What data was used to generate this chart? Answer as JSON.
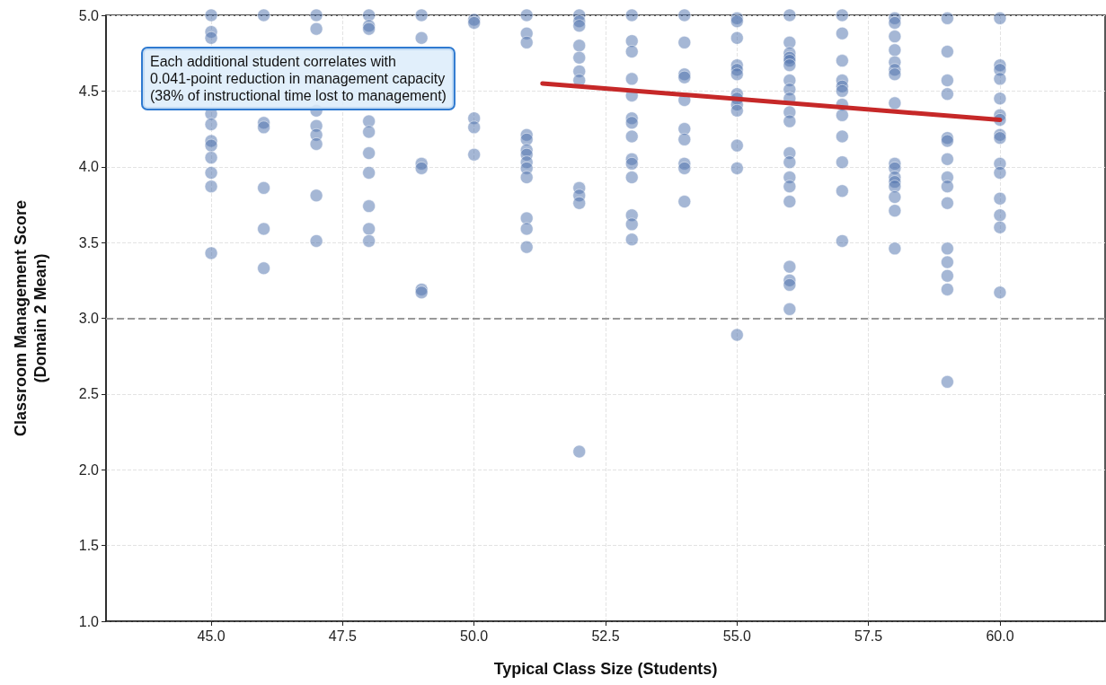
{
  "chart_data": {
    "type": "scatter",
    "xlabel": "Typical Class Size (Students)",
    "ylabel": "Classroom Management Score\n(Domain 2 Mean)",
    "annotations": [
      "Each additional student correlates with\n0.041-point reduction in management capacity\n(38% of instructional time lost to management)"
    ],
    "xlim": [
      43,
      62
    ],
    "ylim": [
      1,
      5
    ],
    "xticks": [
      {
        "value": 45,
        "label": "45.0"
      },
      {
        "value": 47.5,
        "label": "47.5"
      },
      {
        "value": 50,
        "label": "50.0"
      },
      {
        "value": 52.5,
        "label": "52.5"
      },
      {
        "value": 55,
        "label": "55.0"
      },
      {
        "value": 57.5,
        "label": "57.5"
      },
      {
        "value": 60,
        "label": "60.0"
      }
    ],
    "yticks": [
      {
        "value": 1,
        "label": "1.0"
      },
      {
        "value": 1.5,
        "label": "1.5"
      },
      {
        "value": 2,
        "label": "2.0"
      },
      {
        "value": 2.5,
        "label": "2.5"
      },
      {
        "value": 3,
        "label": "3.0"
      },
      {
        "value": 3.5,
        "label": "3.5"
      },
      {
        "value": 4,
        "label": "4.0"
      },
      {
        "value": 4.5,
        "label": "4.5"
      },
      {
        "value": 5,
        "label": "5.0"
      }
    ],
    "grid": true,
    "marker": "circle",
    "ref_lines": [
      {
        "axis": "y",
        "value": 3,
        "color": "#999999",
        "line_style": "dashed"
      }
    ],
    "series": [
      {
        "color": "#4c6fab",
        "x": [
          45,
          45,
          45,
          45,
          45,
          45,
          45,
          45,
          45,
          45,
          45,
          46,
          46,
          46,
          46,
          46,
          46,
          47,
          47,
          47,
          47,
          47,
          47,
          47,
          47,
          48,
          48,
          48,
          48,
          48,
          48,
          48,
          48,
          48,
          48,
          49,
          49,
          49,
          49,
          49,
          49,
          50,
          50,
          50,
          50,
          50,
          51,
          51,
          51,
          51,
          51,
          51,
          51,
          51,
          51,
          51,
          51,
          51,
          51,
          52,
          52,
          52,
          52,
          52,
          52,
          52,
          52,
          52,
          52,
          52,
          53,
          53,
          53,
          53,
          53,
          53,
          53,
          53,
          53,
          53,
          53,
          53,
          53,
          53,
          54,
          54,
          54,
          54,
          54,
          54,
          54,
          54,
          54,
          54,
          55,
          55,
          55,
          55,
          55,
          55,
          55,
          55,
          55,
          55,
          55,
          55,
          55,
          56,
          56,
          56,
          56,
          56,
          56,
          56,
          56,
          56,
          56,
          56,
          56,
          56,
          56,
          56,
          56,
          56,
          56,
          56,
          56,
          57,
          57,
          57,
          57,
          57,
          57,
          57,
          57,
          57,
          57,
          57,
          57,
          58,
          58,
          58,
          58,
          58,
          58,
          58,
          58,
          58,
          58,
          58,
          58,
          58,
          58,
          58,
          58,
          59,
          59,
          59,
          59,
          59,
          59,
          59,
          59,
          59,
          59,
          59,
          59,
          59,
          59,
          59,
          60,
          60,
          60,
          60,
          60,
          60,
          60,
          60,
          60,
          60,
          60,
          60,
          60,
          60,
          60
        ],
        "values": [
          5.0,
          4.89,
          4.85,
          4.35,
          4.28,
          4.17,
          4.14,
          4.06,
          3.96,
          3.87,
          3.43,
          5.0,
          4.29,
          4.26,
          3.86,
          3.59,
          3.33,
          5.0,
          4.91,
          4.37,
          4.27,
          4.21,
          4.15,
          3.81,
          3.51,
          5.0,
          4.93,
          4.91,
          4.3,
          4.23,
          4.09,
          3.96,
          3.74,
          3.59,
          3.51,
          5.0,
          4.85,
          4.02,
          3.99,
          3.19,
          3.17,
          4.97,
          4.95,
          4.32,
          4.26,
          4.08,
          5.0,
          4.88,
          4.82,
          4.21,
          4.18,
          4.11,
          4.08,
          4.03,
          3.99,
          3.93,
          3.66,
          3.59,
          3.47,
          5.0,
          4.96,
          4.93,
          4.8,
          4.72,
          4.63,
          4.57,
          3.86,
          3.81,
          3.76,
          2.12,
          5.0,
          4.83,
          4.76,
          4.58,
          4.47,
          4.32,
          4.29,
          4.2,
          4.05,
          4.02,
          3.93,
          3.68,
          3.62,
          3.52,
          5.0,
          4.82,
          4.61,
          4.59,
          4.44,
          4.25,
          4.18,
          4.02,
          3.99,
          3.77,
          4.98,
          4.96,
          4.85,
          4.67,
          4.64,
          4.61,
          4.48,
          4.45,
          4.41,
          4.37,
          4.14,
          3.99,
          2.89,
          5.0,
          4.82,
          4.75,
          4.72,
          4.7,
          4.67,
          4.57,
          4.51,
          4.45,
          4.36,
          4.3,
          4.09,
          4.03,
          3.93,
          3.87,
          3.77,
          3.34,
          3.25,
          3.22,
          3.06,
          5.0,
          4.88,
          4.7,
          4.57,
          4.53,
          4.5,
          4.41,
          4.34,
          4.2,
          4.03,
          3.84,
          3.51,
          4.98,
          4.95,
          4.86,
          4.77,
          4.69,
          4.64,
          4.61,
          4.42,
          4.02,
          3.99,
          3.93,
          3.9,
          3.87,
          3.8,
          3.71,
          3.46,
          4.98,
          4.76,
          4.57,
          4.48,
          4.19,
          4.17,
          4.05,
          3.93,
          3.87,
          3.76,
          3.46,
          3.37,
          3.28,
          3.19,
          2.58,
          4.98,
          4.67,
          4.64,
          4.58,
          4.45,
          4.34,
          4.31,
          4.21,
          4.19,
          4.02,
          3.96,
          3.79,
          3.68,
          3.6,
          3.17
        ]
      },
      {
        "type": "line",
        "color": "#c62828",
        "marker": "none",
        "x": [
          51.3,
          60
        ],
        "values": [
          4.55,
          4.31
        ]
      }
    ]
  }
}
